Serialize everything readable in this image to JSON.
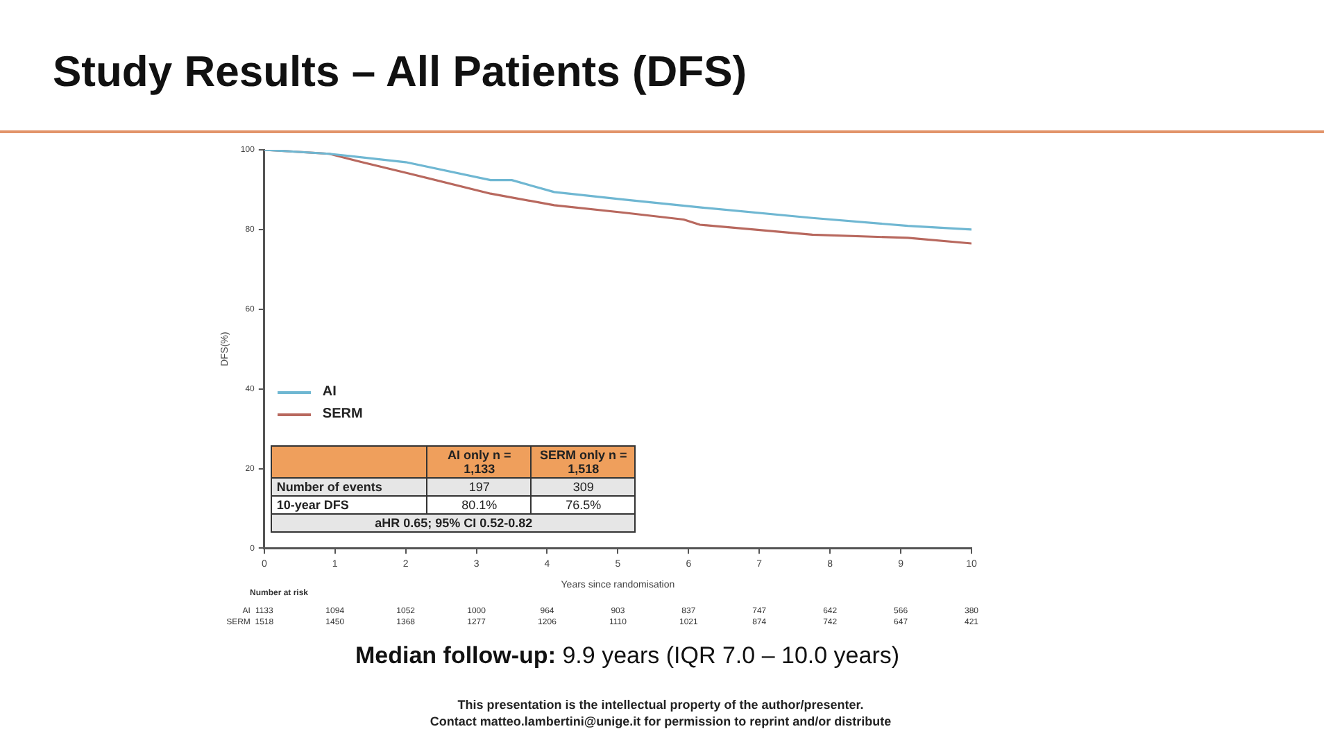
{
  "chart_data": {
    "type": "line",
    "title": "Study Results – All Patients (DFS)",
    "xlabel": "Years since randomisation",
    "ylabel": "DFS(%)",
    "series": [
      {
        "name": "AI",
        "color": "#6fb7d2",
        "x": [
          0,
          0.92,
          2,
          3.2,
          3.5,
          4.1,
          5.1,
          6.2,
          7.75,
          9.1,
          10
        ],
        "values": [
          100,
          99,
          96.9,
          92.4,
          92.4,
          89.4,
          87.5,
          85.5,
          82.9,
          80.9,
          80
        ]
      },
      {
        "name": "SERM",
        "color": "#b8685e",
        "x": [
          0,
          0.92,
          1.38,
          2.06,
          3.2,
          4.1,
          5.1,
          5.93,
          6.16,
          7.75,
          9.1,
          10
        ],
        "values": [
          100,
          99,
          96.9,
          94,
          89,
          86.1,
          84.2,
          82.5,
          81.2,
          78.7,
          77.9,
          76.5
        ]
      }
    ],
    "xlim": [
      0,
      10
    ],
    "xticks": [
      0,
      1,
      2,
      3,
      4,
      5,
      6,
      7,
      8,
      9,
      10
    ],
    "ylim": [
      0,
      100
    ],
    "yticks": [
      0,
      20,
      40,
      60,
      80,
      100
    ],
    "grid": false,
    "legend": "left",
    "marker": "none",
    "line_style": "solid",
    "annotations": [
      "AI only n = 1,133",
      "SERM only n = 1,518",
      "Number of events",
      "197",
      "309",
      "10-year DFS",
      "80.1%",
      "76.5%",
      "aHR 0.65; 95% CI 0.52-0.82",
      "Number at risk",
      "1133",
      "1094",
      "1052",
      "1000",
      "964",
      "903",
      "837",
      "747",
      "642",
      "566",
      "380",
      "1518",
      "1450",
      "1368",
      "1277",
      "1206",
      "1110",
      "1021",
      "874",
      "742",
      "647",
      "421",
      "Median follow-up:",
      "9.9 years (IQR 7.0 – 10.0 years)",
      "This presentation is the intellectual property of the author/presenter.",
      "Contact matteo.lambertini@unige.it for permission to reprint and/or distribute"
    ]
  }
}
